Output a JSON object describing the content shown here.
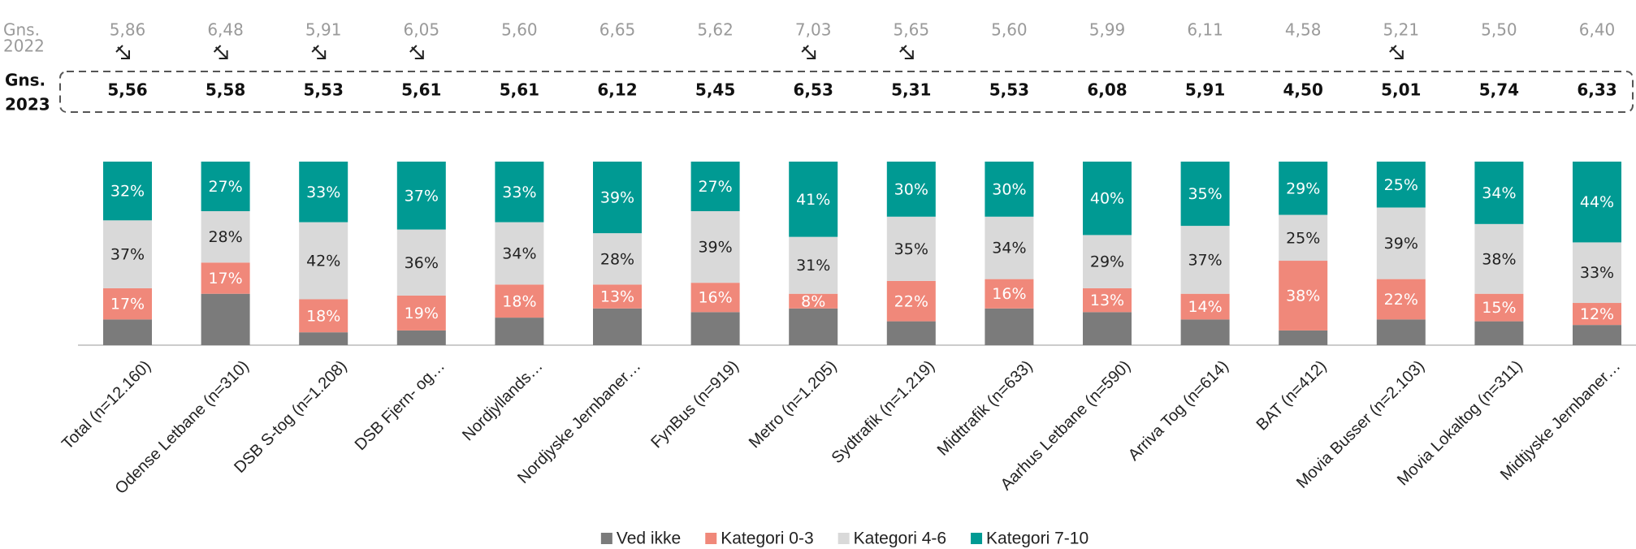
{
  "chart_data": {
    "type": "bar",
    "stacked": true,
    "ylim": [
      0,
      100
    ],
    "categories": [
      "Total (n=12.160)",
      "Odense Letbane (n=310)",
      "DSB S-tog (n=1.208)",
      "DSB Fjern- og…",
      "Nordjyllands…",
      "Nordjyske Jernbaner…",
      "FynBus (n=919)",
      "Metro (n=1.205)",
      "Sydtrafik (n=1.219)",
      "Midttrafik (n=633)",
      "Aarhus Letbane (n=590)",
      "Arriva Tog (n=614)",
      "BAT (n=412)",
      "Movia Busser (n=2.103)",
      "Movia Lokaltog (n=311)",
      "Midtjyske Jernbaner…"
    ],
    "series": [
      {
        "name": "Ved ikke",
        "color": "#7b7b7b",
        "label_color": "#ffffff",
        "values": [
          14,
          28,
          7,
          8,
          15,
          20,
          18,
          20,
          13,
          20,
          18,
          14,
          8,
          14,
          13,
          11
        ]
      },
      {
        "name": "Kategori 0-3",
        "color": "#f0887a",
        "label_color": "#ffffff",
        "values": [
          17,
          17,
          18,
          19,
          18,
          13,
          16,
          8,
          22,
          16,
          13,
          14,
          38,
          22,
          15,
          12
        ],
        "value_labels": [
          "17%",
          "17%",
          "18%",
          "19%",
          "18%",
          "13%",
          "16%",
          "8%",
          "22%",
          "16%",
          "13%",
          "14%",
          "38%",
          "22%",
          "15%",
          "12%"
        ]
      },
      {
        "name": "Kategori 4-6",
        "color": "#d9d9d9",
        "label_color": "#222222",
        "values": [
          37,
          28,
          42,
          36,
          34,
          28,
          39,
          31,
          35,
          34,
          29,
          37,
          25,
          39,
          38,
          33
        ],
        "value_labels": [
          "37%",
          "28%",
          "42%",
          "36%",
          "34%",
          "28%",
          "39%",
          "31%",
          "35%",
          "34%",
          "29%",
          "37%",
          "25%",
          "39%",
          "38%",
          "33%"
        ]
      },
      {
        "name": "Kategori 7-10",
        "color": "#009a93",
        "label_color": "#ffffff",
        "values": [
          32,
          27,
          33,
          37,
          33,
          39,
          27,
          41,
          30,
          30,
          40,
          35,
          29,
          25,
          34,
          44
        ],
        "value_labels": [
          "32%",
          "27%",
          "33%",
          "37%",
          "33%",
          "39%",
          "27%",
          "41%",
          "30%",
          "30%",
          "40%",
          "35%",
          "29%",
          "25%",
          "34%",
          "44%"
        ]
      }
    ],
    "averages": [
      {
        "label": [
          "Gns.",
          "2022"
        ],
        "values": [
          5.86,
          6.48,
          5.91,
          6.05,
          5.6,
          6.65,
          5.62,
          7.03,
          5.65,
          5.6,
          5.99,
          6.11,
          4.58,
          5.21,
          5.5,
          6.4
        ],
        "value_labels": [
          "5,86",
          "6,48",
          "5,91",
          "6,05",
          "5,60",
          "6,65",
          "5,62",
          "7,03",
          "5,65",
          "5,60",
          "5,99",
          "6,11",
          "4,58",
          "5,21",
          "5,50",
          "6,40"
        ],
        "arrows": [
          true,
          true,
          true,
          true,
          false,
          false,
          false,
          true,
          true,
          false,
          false,
          false,
          false,
          true,
          false,
          false
        ]
      },
      {
        "label": [
          "Gns.",
          "2023"
        ],
        "values": [
          5.56,
          5.58,
          5.53,
          5.61,
          5.61,
          6.12,
          5.45,
          6.53,
          5.31,
          5.53,
          6.08,
          5.91,
          4.5,
          5.01,
          5.74,
          6.33
        ],
        "value_labels": [
          "5,56",
          "5,58",
          "5,53",
          "5,61",
          "5,61",
          "6,12",
          "5,45",
          "6,53",
          "5,31",
          "5,53",
          "6,08",
          "5,91",
          "4,50",
          "5,01",
          "5,74",
          "6,33"
        ]
      }
    ]
  }
}
